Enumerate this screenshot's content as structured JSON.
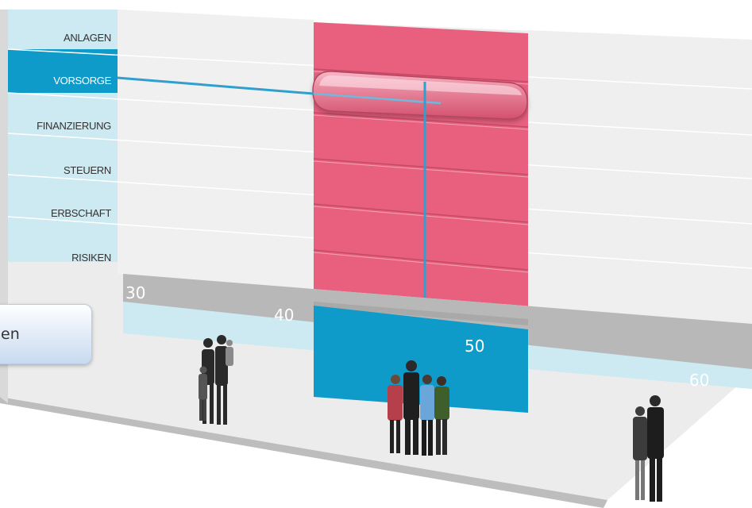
{
  "categories": [
    {
      "label": "ANLAGEN",
      "active": false
    },
    {
      "label": "VORSORGE",
      "active": true
    },
    {
      "label": "FINANZIERUNG",
      "active": false
    },
    {
      "label": "STEUERN",
      "active": false
    },
    {
      "label": "ERBSCHAFT",
      "active": false
    },
    {
      "label": "RISIKEN",
      "active": false
    }
  ],
  "ages": [
    "30",
    "40",
    "50",
    "60"
  ],
  "button": {
    "label": "en"
  },
  "colors": {
    "accent": "#0f9bc9",
    "highlight": "#e8607e",
    "lightBlue": "#cde9f1",
    "gray": "#b8b8b8"
  },
  "icons": {
    "family1": "family-silhouette-icon",
    "family2": "family-group-icon",
    "couple": "couple-icon"
  }
}
